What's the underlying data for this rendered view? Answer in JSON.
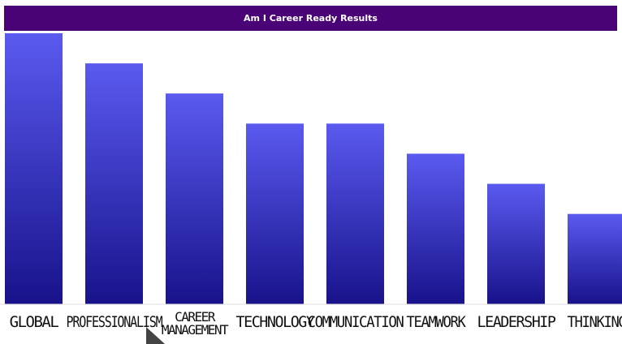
{
  "chart_data": {
    "type": "bar",
    "title": "Am I Career Ready Results",
    "categories": [
      "GLOBAL",
      "PROFESSIONALISM",
      "CAREER MANAGEMENT",
      "TECHNOLOGY",
      "COMMUNICATION",
      "TEAMWORK",
      "LEADERSHIP",
      "THINKING"
    ],
    "values": [
      9,
      8,
      7,
      6,
      6,
      5,
      4,
      3
    ],
    "ylim": [
      0,
      9
    ],
    "grid": false,
    "legend": "none",
    "bar_gradient": [
      "#5a5af0",
      "#18128a"
    ],
    "xlabel": "",
    "ylabel": ""
  }
}
